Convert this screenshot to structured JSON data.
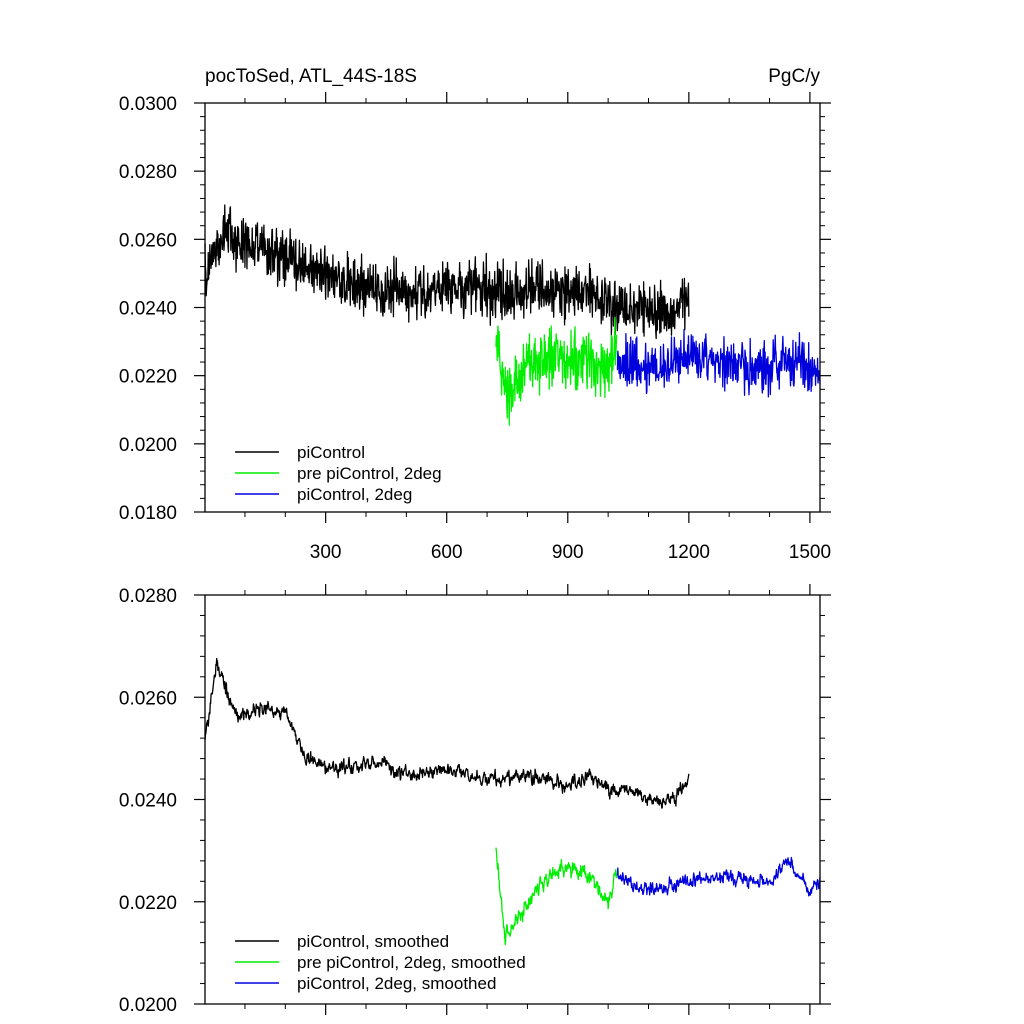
{
  "chart_data": [
    {
      "type": "line",
      "title_left": "pocToSed, ATL_44S-18S",
      "title_right": "PgC/y",
      "xlim": [
        1,
        1525
      ],
      "ylim": [
        0.018,
        0.03
      ],
      "x_ticks": [
        300,
        600,
        900,
        1200,
        1500
      ],
      "x_tick_labels": [
        "300",
        "600",
        "900",
        "1200",
        "1500"
      ],
      "y_ticks": [
        0.018,
        0.02,
        0.022,
        0.024,
        0.026,
        0.028,
        0.03
      ],
      "y_tick_labels": [
        "0.0180",
        "0.0200",
        "0.0220",
        "0.0240",
        "0.0260",
        "0.0280",
        "0.0300"
      ],
      "grid": false,
      "legend_position": "bottom-left",
      "series": [
        {
          "name": "piControl",
          "color": "#000000",
          "x_start": 1,
          "x_end": 1200,
          "x": [
            1,
            50,
            100,
            150,
            200,
            250,
            300,
            350,
            400,
            450,
            500,
            550,
            600,
            650,
            700,
            750,
            800,
            850,
            900,
            950,
            1000,
            1050,
            1100,
            1150,
            1200
          ],
          "y": [
            0.025,
            0.0263,
            0.0258,
            0.0257,
            0.0254,
            0.0252,
            0.0249,
            0.0248,
            0.0246,
            0.0245,
            0.0246,
            0.0245,
            0.0246,
            0.0246,
            0.0245,
            0.0244,
            0.0246,
            0.0245,
            0.0244,
            0.0244,
            0.0242,
            0.024,
            0.024,
            0.0238,
            0.0244
          ],
          "amplitude": 0.0012
        },
        {
          "name": "pre piControl, 2deg",
          "color": "#00ee00",
          "x_start": 722,
          "x_end": 1022,
          "x": [
            722,
            750,
            800,
            850,
            900,
            950,
            1000,
            1022
          ],
          "y": [
            0.023,
            0.0216,
            0.0222,
            0.0226,
            0.0224,
            0.0225,
            0.0222,
            0.023
          ],
          "amplitude": 0.0013
        },
        {
          "name": "piControl, 2deg",
          "color": "#0000dd",
          "x_start": 1023,
          "x_end": 1525,
          "x": [
            1023,
            1100,
            1200,
            1300,
            1400,
            1450,
            1500,
            1525
          ],
          "y": [
            0.0225,
            0.0222,
            0.0226,
            0.0224,
            0.0222,
            0.0226,
            0.0222,
            0.0222
          ],
          "amplitude": 0.0011
        }
      ]
    },
    {
      "type": "line",
      "xlim": [
        1,
        1525
      ],
      "ylim": [
        0.02,
        0.028
      ],
      "x_ticks": [
        300,
        600,
        900,
        1200,
        1500
      ],
      "y_ticks": [
        0.02,
        0.022,
        0.024,
        0.026,
        0.028
      ],
      "y_tick_labels": [
        "0.0200",
        "0.0220",
        "0.0240",
        "0.0260",
        "0.0280"
      ],
      "grid": false,
      "legend_position": "bottom-left",
      "series": [
        {
          "name": "piControl, smoothed",
          "color": "#000000",
          "x_start": 1,
          "x_end": 1200,
          "x": [
            1,
            30,
            80,
            150,
            200,
            250,
            300,
            350,
            400,
            450,
            500,
            550,
            600,
            650,
            700,
            750,
            800,
            850,
            900,
            950,
            1000,
            1050,
            1100,
            1150,
            1200
          ],
          "y": [
            0.0252,
            0.0267,
            0.0256,
            0.0258,
            0.0257,
            0.0248,
            0.0246,
            0.0246,
            0.0247,
            0.0247,
            0.0245,
            0.0245,
            0.0246,
            0.0245,
            0.0244,
            0.0244,
            0.0245,
            0.0244,
            0.0242,
            0.0245,
            0.0242,
            0.0242,
            0.024,
            0.0239,
            0.0244
          ],
          "amplitude": 0.0004
        },
        {
          "name": "pre piControl, 2deg, smoothed",
          "color": "#00ee00",
          "x_start": 722,
          "x_end": 1022,
          "x": [
            722,
            745,
            800,
            850,
            900,
            950,
            1000,
            1022
          ],
          "y": [
            0.023,
            0.0213,
            0.022,
            0.0225,
            0.0227,
            0.0225,
            0.022,
            0.0226
          ],
          "amplitude": 0.0005
        },
        {
          "name": "piControl, 2deg, smoothed",
          "color": "#0000dd",
          "x_start": 1023,
          "x_end": 1525,
          "x": [
            1023,
            1100,
            1200,
            1300,
            1400,
            1450,
            1500,
            1525
          ],
          "y": [
            0.0225,
            0.0222,
            0.0224,
            0.0225,
            0.0224,
            0.0228,
            0.0222,
            0.0224
          ],
          "amplitude": 0.0004
        }
      ]
    }
  ]
}
